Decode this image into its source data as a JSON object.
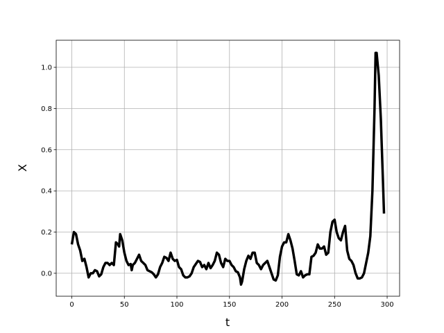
{
  "chart_data": {
    "type": "line",
    "xlabel": "t",
    "ylabel": "X",
    "x": [
      0,
      2,
      4,
      6,
      8,
      10,
      12,
      14,
      16,
      18,
      20,
      22,
      24,
      26,
      28,
      30,
      32,
      34,
      36,
      38,
      40,
      42,
      44,
      45,
      46,
      48,
      50,
      52,
      54,
      56,
      57,
      58,
      60,
      62,
      64,
      66,
      68,
      70,
      72,
      74,
      76,
      78,
      80,
      82,
      84,
      86,
      88,
      90,
      92,
      94,
      96,
      98,
      100,
      102,
      104,
      106,
      108,
      110,
      112,
      114,
      116,
      118,
      120,
      122,
      124,
      126,
      128,
      130,
      132,
      134,
      136,
      138,
      140,
      142,
      144,
      146,
      148,
      150,
      152,
      154,
      156,
      158,
      160,
      161,
      162,
      164,
      166,
      168,
      170,
      172,
      174,
      176,
      178,
      180,
      182,
      184,
      186,
      188,
      190,
      192,
      194,
      196,
      198,
      200,
      202,
      204,
      206,
      208,
      210,
      212,
      214,
      216,
      218,
      220,
      222,
      224,
      226,
      228,
      230,
      232,
      234,
      236,
      238,
      240,
      242,
      244,
      246,
      248,
      250,
      252,
      254,
      256,
      258,
      260,
      262,
      264,
      266,
      268,
      270,
      272,
      274,
      276,
      278,
      280,
      282,
      284,
      286,
      288,
      289,
      290,
      292,
      294,
      296,
      297
    ],
    "series": [
      {
        "color": "#000000",
        "values": [
          0.14,
          0.2,
          0.19,
          0.14,
          0.11,
          0.06,
          0.07,
          0.03,
          -0.02,
          0.0,
          0.0,
          0.015,
          0.01,
          -0.015,
          -0.005,
          0.03,
          0.05,
          0.05,
          0.04,
          0.05,
          0.04,
          0.15,
          0.14,
          0.13,
          0.19,
          0.16,
          0.1,
          0.06,
          0.04,
          0.045,
          0.015,
          0.04,
          0.05,
          0.07,
          0.09,
          0.06,
          0.05,
          0.04,
          0.015,
          0.01,
          0.005,
          -0.005,
          -0.02,
          -0.005,
          0.03,
          0.05,
          0.08,
          0.075,
          0.06,
          0.1,
          0.07,
          0.06,
          0.065,
          0.03,
          0.02,
          -0.01,
          -0.02,
          -0.02,
          -0.015,
          0.0,
          0.03,
          0.045,
          0.06,
          0.055,
          0.03,
          0.04,
          0.02,
          0.05,
          0.025,
          0.04,
          0.06,
          0.1,
          0.09,
          0.05,
          0.03,
          0.07,
          0.06,
          0.06,
          0.04,
          0.03,
          0.01,
          0.005,
          -0.02,
          -0.055,
          -0.04,
          0.02,
          0.06,
          0.085,
          0.07,
          0.1,
          0.1,
          0.05,
          0.04,
          0.02,
          0.04,
          0.05,
          0.06,
          0.03,
          0.0,
          -0.03,
          -0.035,
          -0.01,
          0.08,
          0.13,
          0.15,
          0.15,
          0.19,
          0.16,
          0.12,
          0.06,
          -0.005,
          -0.01,
          0.01,
          -0.02,
          -0.01,
          -0.005,
          -0.005,
          0.08,
          0.085,
          0.1,
          0.14,
          0.12,
          0.12,
          0.13,
          0.09,
          0.1,
          0.2,
          0.25,
          0.26,
          0.2,
          0.17,
          0.16,
          0.2,
          0.23,
          0.11,
          0.07,
          0.06,
          0.04,
          0.0,
          -0.025,
          -0.025,
          -0.02,
          0.0,
          0.05,
          0.1,
          0.18,
          0.4,
          0.8,
          1.07,
          1.07,
          0.96,
          0.75,
          0.45,
          0.29
        ]
      }
    ],
    "xlim": [
      -14.85,
      311.85
    ],
    "ylim": [
      -0.1115,
      1.1315
    ],
    "xticks": [
      0,
      50,
      100,
      150,
      200,
      250,
      300
    ],
    "yticks": [
      {
        "value": 0,
        "label": "0.0"
      },
      {
        "value": 0.2,
        "label": "0.2"
      },
      {
        "value": 0.4,
        "label": "0.4"
      },
      {
        "value": 0.6,
        "label": "0.6"
      },
      {
        "value": 0.8,
        "label": "0.8"
      },
      {
        "value": 1,
        "label": "1.0"
      }
    ],
    "grid": true
  }
}
